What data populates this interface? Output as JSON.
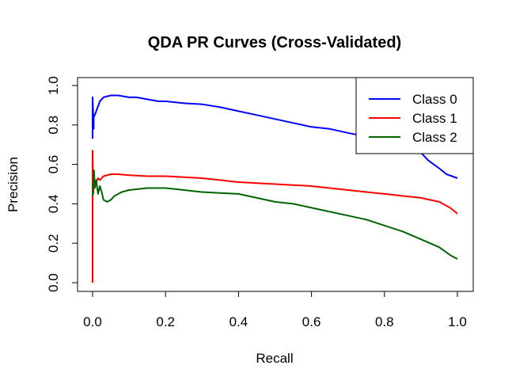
{
  "chart_data": {
    "type": "line",
    "title": "QDA PR Curves (Cross-Validated)",
    "xlabel": "Recall",
    "ylabel": "Precision",
    "xlim": [
      0,
      1
    ],
    "ylim": [
      0,
      1
    ],
    "xticks": [
      "0.0",
      "0.2",
      "0.4",
      "0.6",
      "0.8",
      "1.0"
    ],
    "yticks": [
      "0.0",
      "0.2",
      "0.4",
      "0.6",
      "0.8",
      "1.0"
    ],
    "grid": false,
    "legend_position": "top-right",
    "series": [
      {
        "name": "Class 0",
        "color": "#0000ff",
        "x": [
          0.0,
          0.0,
          0.003,
          0.003,
          0.006,
          0.01,
          0.02,
          0.03,
          0.05,
          0.07,
          0.1,
          0.12,
          0.15,
          0.18,
          0.2,
          0.25,
          0.3,
          0.35,
          0.4,
          0.45,
          0.5,
          0.55,
          0.6,
          0.65,
          0.7,
          0.75,
          0.8,
          0.85,
          0.88,
          0.9,
          0.92,
          0.95,
          0.97,
          1.0
        ],
        "y": [
          0.73,
          0.94,
          0.78,
          0.84,
          0.85,
          0.87,
          0.92,
          0.94,
          0.95,
          0.95,
          0.94,
          0.94,
          0.93,
          0.92,
          0.92,
          0.91,
          0.905,
          0.89,
          0.87,
          0.85,
          0.83,
          0.81,
          0.79,
          0.78,
          0.76,
          0.74,
          0.73,
          0.71,
          0.69,
          0.66,
          0.62,
          0.58,
          0.55,
          0.53
        ]
      },
      {
        "name": "Class 1",
        "color": "#ff0000",
        "x": [
          0.0,
          0.0,
          0.002,
          0.004,
          0.006,
          0.01,
          0.015,
          0.02,
          0.03,
          0.05,
          0.07,
          0.1,
          0.15,
          0.2,
          0.25,
          0.3,
          0.35,
          0.4,
          0.45,
          0.5,
          0.55,
          0.6,
          0.65,
          0.7,
          0.75,
          0.8,
          0.85,
          0.9,
          0.95,
          0.98,
          1.0
        ],
        "y": [
          0.0,
          0.67,
          0.45,
          0.55,
          0.5,
          0.51,
          0.53,
          0.52,
          0.54,
          0.55,
          0.55,
          0.545,
          0.54,
          0.54,
          0.535,
          0.53,
          0.52,
          0.51,
          0.505,
          0.5,
          0.495,
          0.49,
          0.48,
          0.47,
          0.46,
          0.45,
          0.44,
          0.43,
          0.41,
          0.38,
          0.35
        ]
      },
      {
        "name": "Class 2",
        "color": "#006400",
        "x": [
          0.0,
          0.002,
          0.004,
          0.006,
          0.01,
          0.015,
          0.02,
          0.025,
          0.03,
          0.04,
          0.05,
          0.06,
          0.08,
          0.1,
          0.15,
          0.2,
          0.25,
          0.3,
          0.35,
          0.4,
          0.45,
          0.5,
          0.55,
          0.6,
          0.65,
          0.7,
          0.75,
          0.8,
          0.85,
          0.9,
          0.95,
          0.98,
          1.0
        ],
        "y": [
          0.44,
          0.5,
          0.57,
          0.48,
          0.52,
          0.45,
          0.49,
          0.46,
          0.42,
          0.41,
          0.42,
          0.44,
          0.46,
          0.47,
          0.48,
          0.48,
          0.47,
          0.46,
          0.455,
          0.45,
          0.43,
          0.41,
          0.4,
          0.38,
          0.36,
          0.34,
          0.32,
          0.29,
          0.26,
          0.22,
          0.18,
          0.14,
          0.12
        ]
      }
    ]
  }
}
